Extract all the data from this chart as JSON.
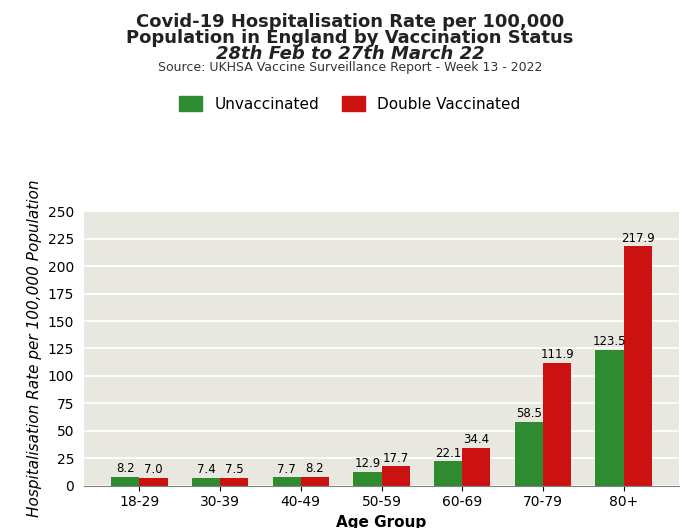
{
  "title_line1": "Covid-19 Hospitalisation Rate per 100,000",
  "title_line2": "Population in England by Vaccination Status",
  "title_line3": "28th Feb to 27th March 22",
  "source": "Source: UKHSA Vaccine Surveillance Report - Week 13 - 2022",
  "xlabel": "Age Group",
  "ylabel": "Hospitalisation Rate per 100,000 Population",
  "categories": [
    "18-29",
    "30-39",
    "40-49",
    "50-59",
    "60-69",
    "70-79",
    "80+"
  ],
  "unvaccinated": [
    8.2,
    7.4,
    7.7,
    12.9,
    22.1,
    58.5,
    123.5
  ],
  "double_vaccinated": [
    7.0,
    7.5,
    8.2,
    17.7,
    34.4,
    111.9,
    217.9
  ],
  "color_unvaccinated": "#2e8b30",
  "color_double_vaccinated": "#cc1111",
  "ylim": [
    0,
    250
  ],
  "yticks": [
    0,
    25,
    50,
    75,
    100,
    125,
    150,
    175,
    200,
    225,
    250
  ],
  "bar_width": 0.35,
  "legend_labels": [
    "Unvaccinated",
    "Double Vaccinated"
  ],
  "plot_bg_color": "#e8e8e0",
  "fig_bg_color": "#ffffff",
  "title_fontsize": 13,
  "source_fontsize": 9,
  "axis_label_fontsize": 11,
  "tick_fontsize": 10,
  "annotation_fontsize": 8.5,
  "legend_fontsize": 11
}
